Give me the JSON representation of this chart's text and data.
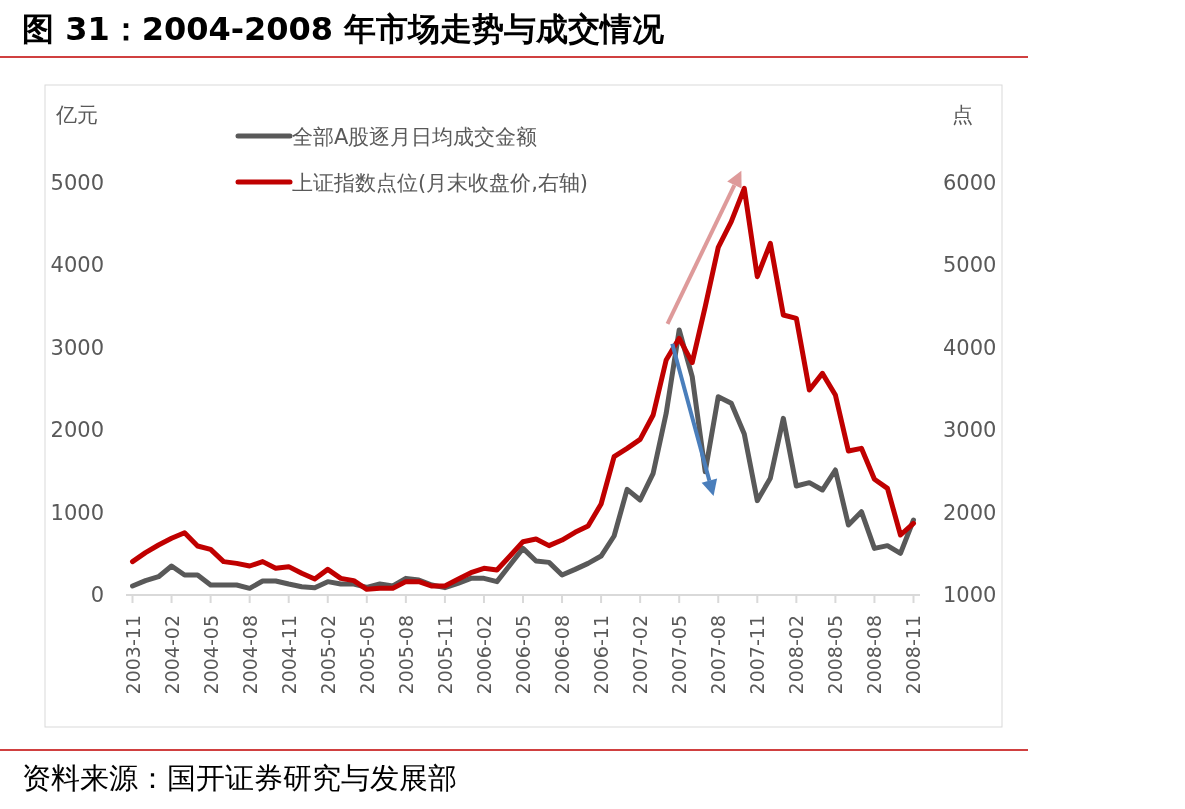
{
  "chart_data": {
    "type": "line",
    "title": "图 31：2004-2008 年市场走势与成交情况",
    "ylabel": "亿元",
    "y2label": "点",
    "categories": [
      "2003-11",
      null,
      null,
      "2004-02",
      null,
      null,
      "2004-05",
      null,
      null,
      "2004-08",
      null,
      null,
      "2004-11",
      null,
      null,
      "2005-02",
      null,
      null,
      "2005-05",
      null,
      null,
      "2005-08",
      null,
      null,
      "2005-11",
      null,
      null,
      "2006-02",
      null,
      null,
      "2006-05",
      null,
      null,
      "2006-08",
      null,
      null,
      "2006-11",
      null,
      null,
      "2007-02",
      null,
      null,
      "2007-05",
      null,
      null,
      "2007-08",
      null,
      null,
      "2007-11",
      null,
      null,
      "2008-02",
      null,
      null,
      "2008-05",
      null,
      null,
      "2008-08",
      null,
      null,
      "2008-11"
    ],
    "series": [
      {
        "name": "全部A股逐月日均成交金额",
        "color": "#595959",
        "values": [
          109,
          174,
          222,
          352,
          243,
          243,
          121,
          121,
          121,
          81,
          170,
          170,
          133,
          101,
          89,
          162,
          133,
          133,
          93,
          133,
          109,
          202,
          182,
          121,
          89,
          142,
          202,
          202,
          162,
          364,
          566,
          413,
          396,
          243,
          311,
          384,
          473,
          716,
          1282,
          1153,
          1477,
          2205,
          3216,
          2650,
          1497,
          2407,
          2326,
          1954,
          1145,
          1416,
          2144,
          1323,
          1363,
          1274,
          1517,
          850,
          1011,
          566,
          599,
          506,
          910
        ]
      },
      {
        "name": "上证指数点位(月末收盘价,右轴)",
        "color": "#c00000",
        "axis": "y2",
        "values": [
          1405,
          1514,
          1607,
          1688,
          1756,
          1595,
          1554,
          1405,
          1384,
          1352,
          1405,
          1324,
          1344,
          1263,
          1194,
          1311,
          1202,
          1174,
          1069,
          1081,
          1081,
          1162,
          1162,
          1109,
          1109,
          1190,
          1271,
          1324,
          1303,
          1473,
          1647,
          1680,
          1599,
          1667,
          1761,
          1837,
          2104,
          2679,
          2780,
          2889,
          3184,
          3852,
          4115,
          3820,
          4499,
          5219,
          5531,
          5935,
          4863,
          5268,
          4398,
          4358,
          3488,
          3690,
          3427,
          2748,
          2780,
          2404,
          2294,
          1728,
          1870
        ]
      }
    ],
    "ylim": [
      0,
      5000
    ],
    "yticks": [
      0,
      1000,
      2000,
      3000,
      4000,
      5000
    ],
    "y2lim": [
      1000,
      6000
    ],
    "y2ticks": [
      1000,
      2000,
      3000,
      4000,
      5000,
      6000
    ],
    "grid": false,
    "legend": "top",
    "line_style": "solid",
    "marker": "none",
    "annotations": [
      "资料来源：国开证券研究与发展部"
    ]
  }
}
